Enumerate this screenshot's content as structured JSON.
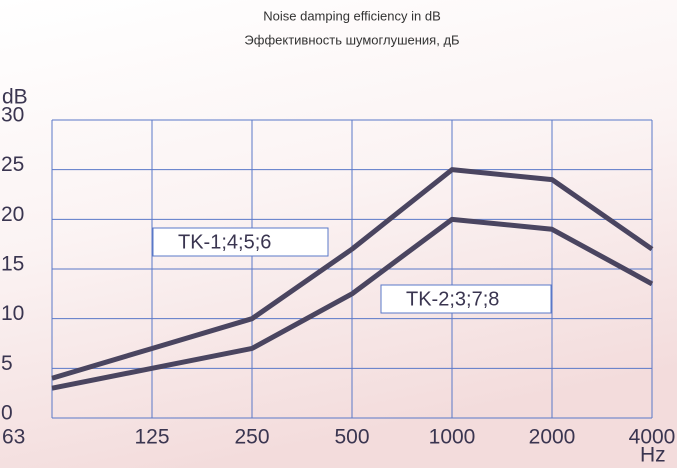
{
  "chart_data": {
    "type": "line",
    "title": "Noise damping efficiency in dB",
    "subtitle": "Эффективность шумоглушения, дБ",
    "y_label": "dB",
    "x_label": "Hz",
    "categories": [
      "63",
      "125",
      "250",
      "500",
      "1000",
      "2000",
      "4000"
    ],
    "series": [
      {
        "name": "TK-1;4;5;6",
        "color": "#4a4560",
        "values": [
          4,
          7,
          10,
          17,
          25,
          24,
          17
        ]
      },
      {
        "name": "TK-2;3;7;8",
        "color": "#4a4560",
        "values": [
          3,
          5,
          7,
          12.5,
          20,
          19,
          13.5
        ]
      }
    ],
    "ylim": [
      0,
      30
    ],
    "yticks": [
      0,
      5,
      10,
      15,
      20,
      25,
      30
    ],
    "grid": true,
    "grid_color": "#5a78c8"
  }
}
